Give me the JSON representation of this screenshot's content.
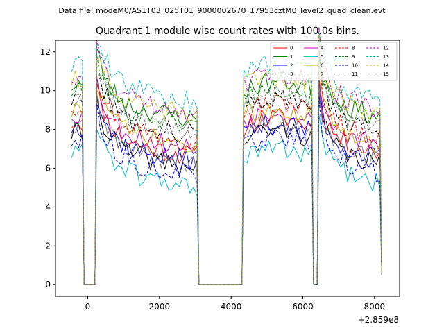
{
  "chart_data": {
    "type": "line",
    "suptitle": "Data file: modeM0/AS1T03_025T01_9000002670_17953cztM0_level2_quad_clean.evt",
    "title": "Quadrant 1 module wise count rates with 100.0s bins.",
    "xlabel": "",
    "ylabel": "",
    "x_offset_label": "+2.859e8",
    "xlim": [
      -900,
      8700
    ],
    "ylim": [
      -0.6,
      12.6
    ],
    "xticks": [
      0,
      2000,
      4000,
      6000,
      8000
    ],
    "yticks": [
      0,
      2,
      4,
      6,
      8,
      10,
      12
    ],
    "xtick_labels": [
      "0",
      "2000",
      "4000",
      "6000",
      "8000"
    ],
    "ytick_labels": [
      "0",
      "2",
      "4",
      "6",
      "8",
      "10",
      "12"
    ],
    "legend_position": "top-right",
    "segments": [
      {
        "start": -450,
        "end": -150,
        "n": 4
      },
      {
        "start": -50,
        "end": 50,
        "n": 0
      },
      {
        "start": 250,
        "end": 3050,
        "n": 29
      },
      {
        "start": 3150,
        "end": 4250,
        "n": 0
      },
      {
        "start": 4350,
        "end": 6250,
        "n": 20
      },
      {
        "start": 6350,
        "end": 6350,
        "n": 0
      },
      {
        "start": 6450,
        "end": 8150,
        "n": 18
      }
    ],
    "zero_points": [
      -100,
      -50,
      0,
      50,
      100,
      200,
      3100,
      3200,
      3300,
      3400,
      3500,
      3600,
      3700,
      3800,
      3900,
      4000,
      4100,
      4200,
      4300,
      6300,
      6400,
      8200
    ],
    "series": [
      {
        "name": "0",
        "color": "#ff0000",
        "dash": false,
        "level": 7.5,
        "seed": 11
      },
      {
        "name": "1",
        "color": "#008000",
        "dash": false,
        "level": 9.4,
        "seed": 23
      },
      {
        "name": "2",
        "color": "#0000ff",
        "dash": false,
        "level": 7.2,
        "seed": 37
      },
      {
        "name": "3",
        "color": "#000000",
        "dash": false,
        "level": 6.9,
        "seed": 41
      },
      {
        "name": "4",
        "color": "#bf00bf",
        "dash": false,
        "level": 7.9,
        "seed": 53
      },
      {
        "name": "5",
        "color": "#00bfbf",
        "dash": false,
        "level": 5.9,
        "seed": 61
      },
      {
        "name": "6",
        "color": "#bfbf00",
        "dash": false,
        "level": 8.0,
        "seed": 73
      },
      {
        "name": "7",
        "color": "#808080",
        "dash": false,
        "level": 7.1,
        "seed": 89
      },
      {
        "name": "8",
        "color": "#ff0000",
        "dash": true,
        "level": 8.3,
        "seed": 97
      },
      {
        "name": "9",
        "color": "#008000",
        "dash": true,
        "level": 9.1,
        "seed": 101
      },
      {
        "name": "10",
        "color": "#0000ff",
        "dash": true,
        "level": 6.5,
        "seed": 113
      },
      {
        "name": "11",
        "color": "#000000",
        "dash": true,
        "level": 8.6,
        "seed": 127
      },
      {
        "name": "12",
        "color": "#bf00bf",
        "dash": true,
        "level": 9.8,
        "seed": 131
      },
      {
        "name": "13",
        "color": "#00bfbf",
        "dash": true,
        "level": 10.3,
        "seed": 139
      },
      {
        "name": "14",
        "color": "#bfbf00",
        "dash": true,
        "level": 9.6,
        "seed": 151
      },
      {
        "name": "15",
        "color": "#808080",
        "dash": true,
        "level": 8.8,
        "seed": 163
      }
    ]
  }
}
